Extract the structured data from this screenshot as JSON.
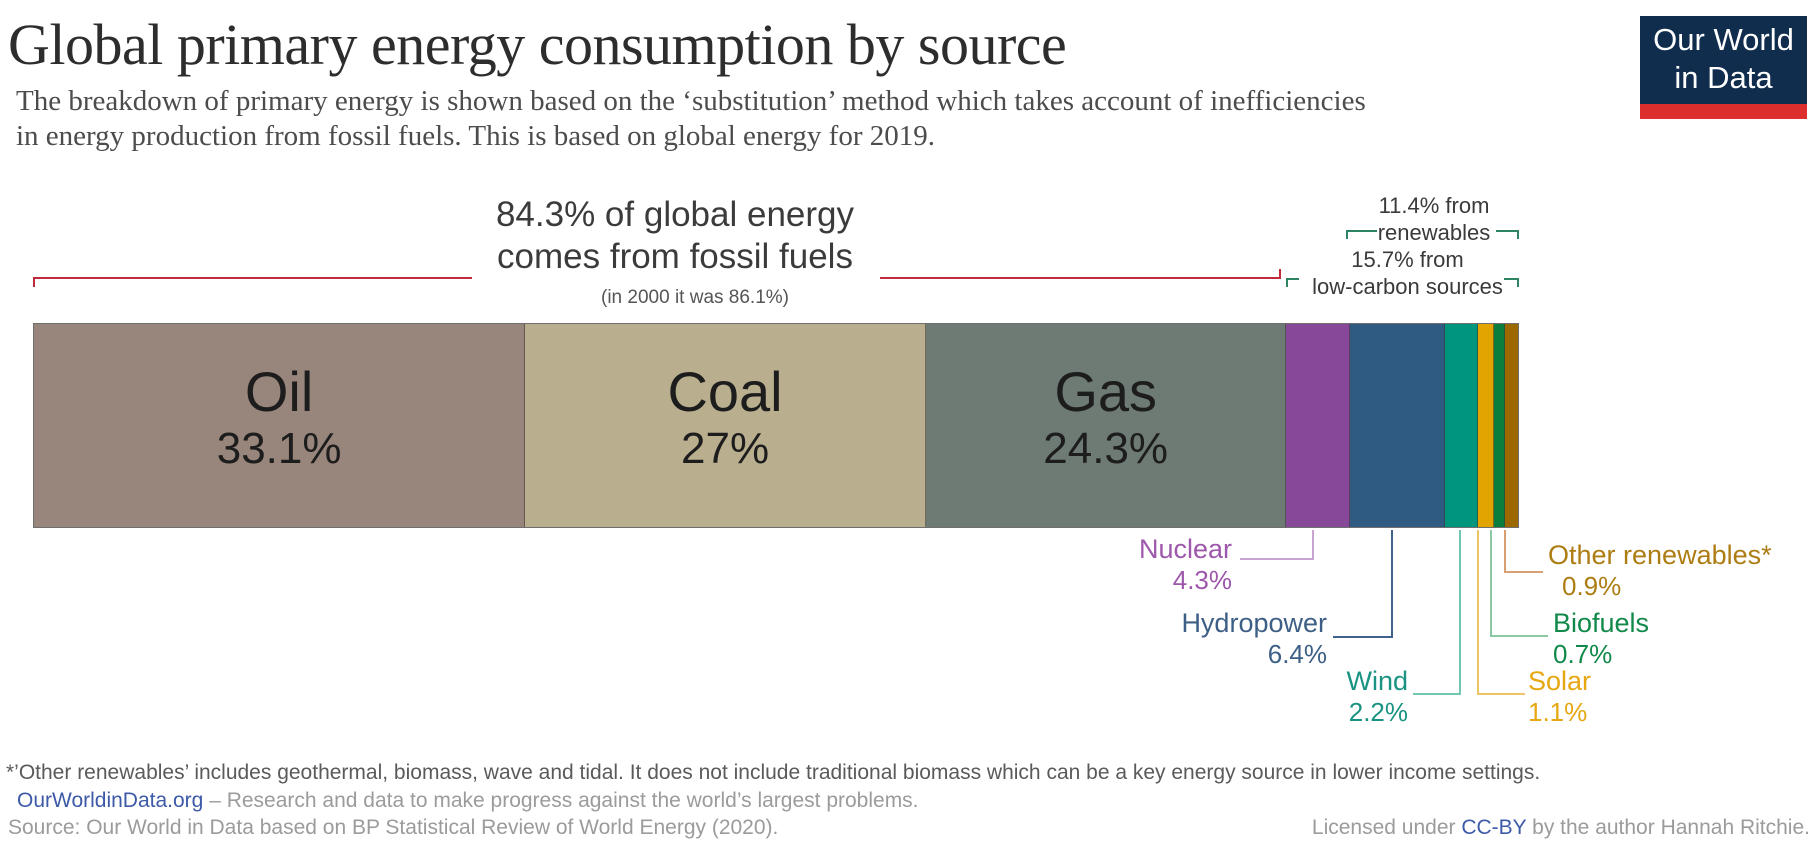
{
  "header": {
    "title": "Global primary energy consumption by source",
    "subtitle_line1": "The breakdown of primary energy is shown based on the ‘substitution’ method which takes account of inefficiencies",
    "subtitle_line2": "in energy production from fossil fuels. This is based on global energy for 2019.",
    "logo": {
      "line1": "Our World",
      "line2": "in Data",
      "bg_color": "#102d4e",
      "stripe_color": "#dc2e2c",
      "text_color": "#ffffff"
    }
  },
  "annotations": {
    "fossil_line1": "84.3% of global energy",
    "fossil_line2": "comes from fossil fuels",
    "fossil_note": "(in 2000 it was 86.1%)",
    "fossil_bracket_color": "#c12a3c",
    "renewables_line1": "11.4% from",
    "renewables_line2": "renewables",
    "low_carbon_line1": "15.7% from",
    "low_carbon_line2": "low-carbon sources",
    "green_bracket_color": "#2d8462"
  },
  "chart_data": {
    "type": "bar",
    "variant": "single horizontal stacked bar",
    "unit": "%",
    "year_shown": "2019",
    "title": "Global primary energy consumption by source",
    "categories": [
      "Oil",
      "Coal",
      "Gas",
      "Nuclear",
      "Hydropower",
      "Wind",
      "Solar",
      "Biofuels",
      "Other renewables*"
    ],
    "values": [
      33.1,
      27,
      24.3,
      4.3,
      6.4,
      2.2,
      1.1,
      0.7,
      0.9
    ],
    "series": [
      {
        "name": "Oil",
        "value": 33.1,
        "pct_label": "33.1%",
        "color": "#98857b",
        "inline": true
      },
      {
        "name": "Coal",
        "value": 27,
        "pct_label": "27%",
        "color": "#b9af8f",
        "inline": true
      },
      {
        "name": "Gas",
        "value": 24.3,
        "pct_label": "24.3%",
        "color": "#6e7a74",
        "inline": true
      },
      {
        "name": "Nuclear",
        "value": 4.3,
        "pct_label": "4.3%",
        "color": "#87489a",
        "inline": false
      },
      {
        "name": "Hydropower",
        "value": 6.4,
        "pct_label": "6.4%",
        "color": "#2f5a82",
        "inline": false
      },
      {
        "name": "Wind",
        "value": 2.2,
        "pct_label": "2.2%",
        "color": "#00957d",
        "inline": false
      },
      {
        "name": "Solar",
        "value": 1.1,
        "pct_label": "1.1%",
        "color": "#e2a400",
        "inline": false
      },
      {
        "name": "Biofuels",
        "value": 0.7,
        "pct_label": "0.7%",
        "color": "#0b7e3e",
        "inline": false
      },
      {
        "name": "Other renewables*",
        "value": 0.9,
        "pct_label": "0.9%",
        "color": "#9c6800",
        "inline": false
      }
    ],
    "groupings": [
      {
        "label": "fossil fuels",
        "value": 84.3,
        "note": "in 2000 it was 86.1%"
      },
      {
        "label": "renewables",
        "value": 11.4
      },
      {
        "label": "low-carbon sources",
        "value": 15.7
      }
    ],
    "legend_position": "labels inside bar and callouts below bar",
    "grid": false
  },
  "callouts": {
    "nuclear": {
      "name": "Nuclear",
      "pct": "4.3%",
      "text_color": "#9d57ab",
      "leader_color": "#c9a3cf"
    },
    "hydropower": {
      "name": "Hydropower",
      "pct": "6.4%",
      "text_color": "#3d5f85",
      "leader_color": "#41628c"
    },
    "wind": {
      "name": "Wind",
      "pct": "2.2%",
      "text_color": "#1a9382",
      "leader_color": "#74c5b4"
    },
    "solar": {
      "name": "Solar",
      "pct": "1.1%",
      "text_color": "#e6a712",
      "leader_color": "#eec469"
    },
    "biofuels": {
      "name": "Biofuels",
      "pct": "0.7%",
      "text_color": "#11894a",
      "leader_color": "#8cc8a4"
    },
    "other": {
      "name": "Other renewables*",
      "pct": "0.9%",
      "text_color": "#ad7d13",
      "leader_color": "#d99f70"
    }
  },
  "footer": {
    "footnote": "*’Other renewables’  includes geothermal, biomass, wave and tidal. It does not include traditional biomass which can be a key energy source in lower income settings.",
    "site_link": "OurWorldinData.org",
    "site_tagline": " – Research and data to make progress against the world’s largest problems.",
    "source": "Source: Our World in Data based on BP Statistical Review of World Energy (2020).",
    "license_prefix": "Licensed under ",
    "license_link": "CC-BY",
    "license_suffix": " by the author Hannah Ritchie.",
    "link_color": "#3d5aa8"
  }
}
